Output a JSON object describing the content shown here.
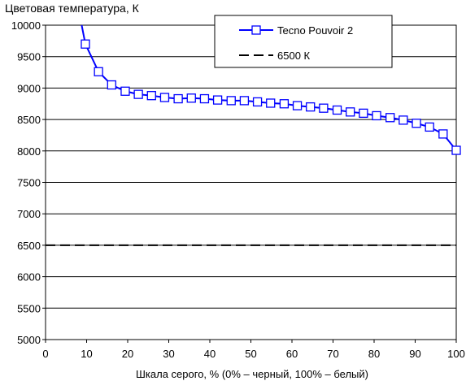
{
  "chart_data": {
    "type": "line",
    "title": "Цветовая температура, К",
    "xlabel": "Шкала серого, % (0% – черный, 100% – белый)",
    "ylabel": "",
    "xlim": [
      0,
      100
    ],
    "ylim": [
      5000,
      10000
    ],
    "x_ticks": [
      "0",
      "10",
      "20",
      "30",
      "40",
      "50",
      "60",
      "70",
      "80",
      "90",
      "100"
    ],
    "y_ticks": [
      "5000",
      "5500",
      "6000",
      "6500",
      "7000",
      "7500",
      "8000",
      "8500",
      "9000",
      "9500",
      "10000"
    ],
    "grid": "horizontal",
    "legend_position": "top-right",
    "series": [
      {
        "name": "Tecno Pouvoir 2",
        "color": "#0000ff",
        "marker": "square",
        "line_x": [
          8.8,
          9.7
        ],
        "line_y": [
          10000,
          9700
        ],
        "x": [
          9.7,
          12.9,
          16.1,
          19.4,
          22.6,
          25.8,
          29.0,
          32.3,
          35.5,
          38.7,
          41.9,
          45.2,
          48.4,
          51.6,
          54.8,
          58.1,
          61.3,
          64.5,
          67.7,
          71.0,
          74.2,
          77.4,
          80.6,
          83.9,
          87.1,
          90.3,
          93.5,
          96.8,
          100.0
        ],
        "y": [
          9700,
          9260,
          9050,
          8950,
          8900,
          8880,
          8850,
          8830,
          8840,
          8830,
          8810,
          8800,
          8800,
          8780,
          8760,
          8750,
          8720,
          8700,
          8680,
          8650,
          8620,
          8600,
          8560,
          8530,
          8490,
          8440,
          8380,
          8270,
          8010
        ]
      },
      {
        "name": "6500 К",
        "color": "#000000",
        "dashed": true,
        "x": [
          0,
          100
        ],
        "y": [
          6500,
          6500
        ]
      }
    ]
  }
}
